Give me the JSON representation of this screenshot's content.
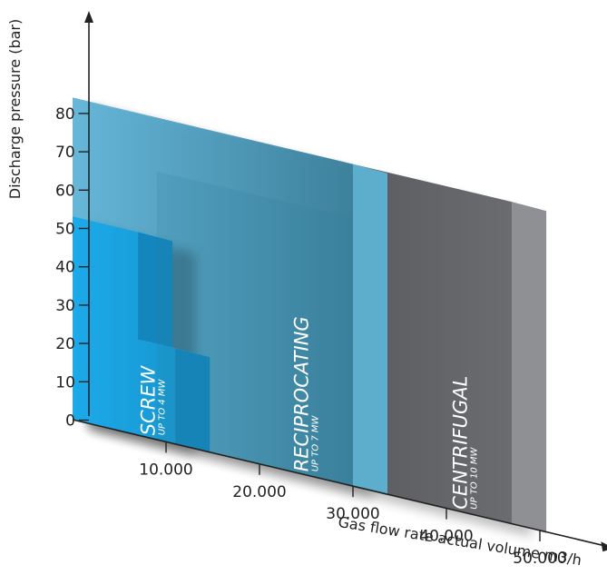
{
  "chart_data": {
    "type": "area",
    "xlabel": "Gas flow rate actual volume m3/h",
    "ylabel": "Discharge pressure (bar)",
    "y_ticks": [
      "0",
      "10",
      "20",
      "30",
      "40",
      "50",
      "60",
      "70",
      "80"
    ],
    "x_ticks": [
      "10.000",
      "20.000",
      "30.000",
      "40.000",
      "50.000"
    ],
    "ylim": [
      0,
      90
    ],
    "xlim": [
      0,
      55000
    ],
    "legend": "none",
    "regions": [
      {
        "name": "CENTRIFUGAL",
        "capacity": "UP TO 10 MW",
        "color": "#5d5f63",
        "steps": [
          {
            "x_max": 47000,
            "y_max": 84
          }
        ]
      },
      {
        "name": "RECIPROCATING",
        "capacity": "UP TO 7 MW",
        "color": "#5cbbe0",
        "steps": [
          {
            "x_max": 30000,
            "y_max": 84
          }
        ]
      },
      {
        "name": "SCREW",
        "capacity": "UP TO 4 MW",
        "color": "#1aa6e3",
        "steps": [
          {
            "x_max": 7000,
            "y_max": 53
          },
          {
            "x_max": 11000,
            "y_max": 25
          }
        ]
      }
    ]
  }
}
